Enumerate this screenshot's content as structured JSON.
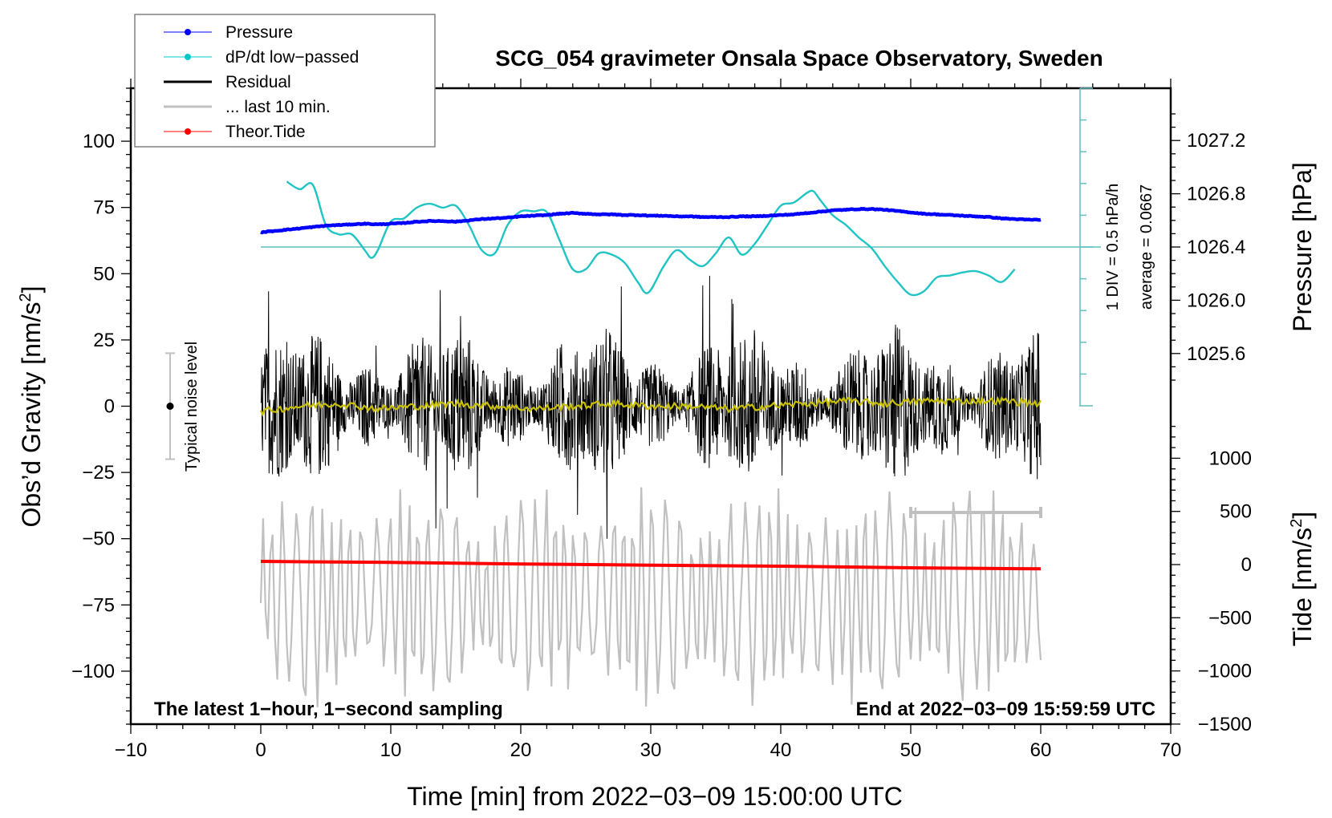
{
  "chart_data": {
    "type": "line",
    "title": "SCG_054 gravimeter Onsala Space Observatory, Sweden",
    "xlabel": "Time [min] from 2022−03−09 15:00:00 UTC",
    "ylabel_left": "Obs’d Gravity [nm/s²]",
    "ylabel_left_base": "Obs’d Gravity [nm/s",
    "ylabel_left_sup": "2",
    "ylabel_left_end": "]",
    "ylabel_right_pressure": "Pressure [hPa]",
    "ylabel_right_tide_base": "Tide [nm/s",
    "ylabel_right_tide_sup": "2",
    "ylabel_right_tide_end": "]",
    "xlim": [
      -10,
      70
    ],
    "ylim_gravity": [
      -120,
      120
    ],
    "x_ticks": [
      -10,
      0,
      10,
      20,
      30,
      40,
      50,
      60,
      70
    ],
    "x_tick_labels": [
      "−10",
      "0",
      "10",
      "20",
      "30",
      "40",
      "50",
      "60",
      "70"
    ],
    "gravity_ticks": [
      100,
      75,
      50,
      25,
      0,
      -25,
      -50,
      -75,
      -100
    ],
    "gravity_tick_labels": [
      "100",
      "75",
      "50",
      "25",
      "0",
      "−25",
      "−50",
      "−75",
      "−100"
    ],
    "pressure_ticks": [
      1027.2,
      1026.8,
      1026.4,
      1026.0,
      1025.6
    ],
    "pressure_tick_labels": [
      "1027.2",
      "1026.8",
      "1026.4",
      "1026.0",
      "1025.6"
    ],
    "tide_ticks": [
      1000,
      500,
      0,
      -500,
      -1000,
      -1500
    ],
    "tide_tick_labels": [
      "1000",
      "500",
      "0",
      "−500",
      "−1000",
      "−1500"
    ],
    "grid": false,
    "legend_placement": "top-left",
    "legend": [
      {
        "label": "Pressure",
        "color": "#0000ff",
        "marker": "dot"
      },
      {
        "label": "dP/dt low−passed",
        "color": "#00c8c8",
        "marker": "dot"
      },
      {
        "label": "Residual",
        "color": "#000000",
        "marker": "line"
      },
      {
        "label": "... last 10 min.",
        "color": "#c0c0c0",
        "marker": "line"
      },
      {
        "label": "Theor.Tide",
        "color": "#ff0000",
        "marker": "dot"
      }
    ],
    "colors": {
      "pressure": "#0000ff",
      "dpdt": "#20c4c4",
      "dpdt_axis": "#5fbfbf",
      "residual": "#000000",
      "residual_smooth": "#c8c000",
      "last10": "#c0c0c0",
      "tide": "#ff0000",
      "noise": "#c0c0c0"
    },
    "series": [
      {
        "name": "Pressure",
        "units": "hPa",
        "x": [
          0,
          1,
          2,
          3,
          4,
          5,
          6,
          7,
          8,
          9,
          10,
          11,
          12,
          13,
          14,
          15,
          16,
          17,
          18,
          19,
          20,
          21,
          22,
          23,
          24,
          25,
          26,
          27,
          28,
          29,
          30,
          31,
          32,
          33,
          34,
          35,
          36,
          37,
          38,
          39,
          40,
          41,
          42,
          43,
          44,
          45,
          46,
          47,
          48,
          49,
          50,
          51,
          52,
          53,
          54,
          55,
          56,
          57,
          58,
          59,
          60
        ],
        "values": [
          1026.51,
          1026.52,
          1026.53,
          1026.54,
          1026.55,
          1026.56,
          1026.565,
          1026.57,
          1026.575,
          1026.57,
          1026.575,
          1026.58,
          1026.59,
          1026.595,
          1026.595,
          1026.59,
          1026.6,
          1026.61,
          1026.615,
          1026.62,
          1026.63,
          1026.635,
          1026.64,
          1026.65,
          1026.655,
          1026.65,
          1026.645,
          1026.645,
          1026.64,
          1026.64,
          1026.635,
          1026.635,
          1026.63,
          1026.63,
          1026.625,
          1026.625,
          1026.625,
          1026.63,
          1026.63,
          1026.635,
          1026.64,
          1026.645,
          1026.655,
          1026.665,
          1026.675,
          1026.68,
          1026.685,
          1026.685,
          1026.68,
          1026.67,
          1026.66,
          1026.65,
          1026.645,
          1026.64,
          1026.635,
          1026.63,
          1026.625,
          1026.615,
          1026.61,
          1026.605,
          1026.605
        ]
      },
      {
        "name": "dP/dt low−passed",
        "units": "hPa/h relative to average (1 DIV = 0.5 hPa/h)",
        "average": 0.0667,
        "x": [
          2,
          3,
          4,
          5,
          6,
          7,
          8,
          8.5,
          9,
          10,
          11,
          12,
          13,
          14,
          15,
          16,
          17,
          18,
          19,
          20,
          21,
          22,
          23,
          24,
          25,
          26,
          27,
          28,
          29,
          29.8,
          31,
          32,
          33,
          34,
          35,
          36,
          37,
          38,
          39,
          40,
          41,
          42,
          42.5,
          43,
          44,
          45,
          46,
          47,
          48,
          49,
          50,
          51,
          52,
          53,
          54,
          55,
          56,
          57,
          58
        ],
        "values": [
          1.03,
          0.91,
          0.98,
          0.35,
          0.2,
          0.2,
          -0.05,
          -0.17,
          -0.05,
          0.4,
          0.45,
          0.62,
          0.68,
          0.62,
          0.65,
          0.35,
          -0.05,
          -0.1,
          0.35,
          0.56,
          0.56,
          0.55,
          0.1,
          -0.35,
          -0.35,
          -0.1,
          -0.12,
          -0.25,
          -0.55,
          -0.72,
          -0.3,
          -0.05,
          -0.2,
          -0.3,
          -0.1,
          0.15,
          -0.12,
          0.05,
          0.35,
          0.65,
          0.7,
          0.85,
          0.88,
          0.75,
          0.5,
          0.35,
          0.15,
          -0.02,
          -0.3,
          -0.55,
          -0.75,
          -0.7,
          -0.48,
          -0.45,
          -0.4,
          -0.38,
          -0.45,
          -0.55,
          -0.35
        ]
      },
      {
        "name": "Residual",
        "units": "nm/s²",
        "x_range": [
          0,
          60
        ],
        "envelope": {
          "typical_amplitude": 20,
          "max_positive": 50,
          "min_negative": -50
        },
        "smoothed_mean": [
          -2,
          0,
          1,
          -1,
          0,
          1,
          0,
          -1,
          0,
          1,
          0,
          0,
          -1,
          0,
          1,
          2,
          1,
          2,
          2,
          2,
          1
        ]
      },
      {
        "name": "... last 10 min.",
        "units": "nm/s² (minutes 50–60 residual, stretched across plot)",
        "x_range": [
          0,
          60
        ],
        "center": -72,
        "amplitude_range": [
          -110,
          -35
        ]
      },
      {
        "name": "Theor.Tide",
        "units": "nm/s²",
        "x": [
          0,
          10,
          20,
          30,
          40,
          50,
          60
        ],
        "values": [
          30,
          20,
          5,
          -5,
          -15,
          -30,
          -40
        ]
      }
    ],
    "annotations": {
      "noise_level_label": "Typical noise level",
      "noise_level_range": [
        -20,
        20
      ],
      "dpdt_scale": "1 DIV = 0.5 hPa/h",
      "dpdt_average": "average = 0.0667",
      "last10_bracket_min": [
        50,
        60
      ],
      "bottom_left": "The latest 1−hour, 1−second sampling",
      "bottom_right": "End at 2022−03−09 15:59:59 UTC"
    }
  }
}
